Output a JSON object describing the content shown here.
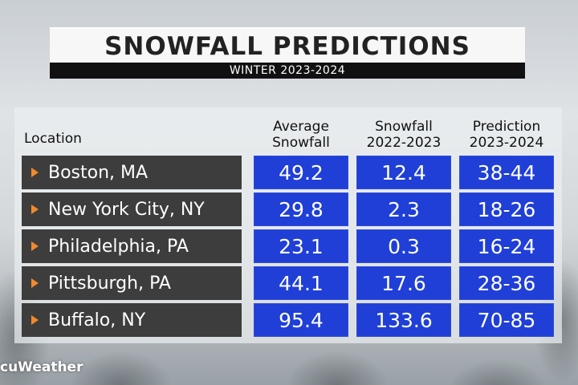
{
  "header": {
    "title": "SNOWFALL PREDICTIONS",
    "subtitle": "WINTER 2023-2024"
  },
  "columns": {
    "location": "Location",
    "average": [
      "Average",
      "Snowfall"
    ],
    "snowfall_prev": [
      "Snowfall",
      "2022-2023"
    ],
    "prediction": [
      "Prediction",
      "2023-2024"
    ]
  },
  "logo": "cuWeather",
  "colors": {
    "accent_arrow": "#f08a2c",
    "cell_blue": "#1f3fd6",
    "location_bg": "#3d3d3d"
  },
  "chart_data": {
    "type": "table",
    "title": "SNOWFALL PREDICTIONS",
    "subtitle": "WINTER 2023-2024",
    "headers": [
      "Location",
      "Average Snowfall",
      "Snowfall 2022-2023",
      "Prediction 2023-2024"
    ],
    "rows": [
      {
        "location": "Boston, MA",
        "average": "49.2",
        "snowfall_prev": "12.4",
        "prediction": "38-44"
      },
      {
        "location": "New York City, NY",
        "average": "29.8",
        "snowfall_prev": "2.3",
        "prediction": "18-26"
      },
      {
        "location": "Philadelphia, PA",
        "average": "23.1",
        "snowfall_prev": "0.3",
        "prediction": "16-24"
      },
      {
        "location": "Pittsburgh, PA",
        "average": "44.1",
        "snowfall_prev": "17.6",
        "prediction": "28-36"
      },
      {
        "location": "Buffalo, NY",
        "average": "95.4",
        "snowfall_prev": "133.6",
        "prediction": "70-85"
      }
    ]
  }
}
